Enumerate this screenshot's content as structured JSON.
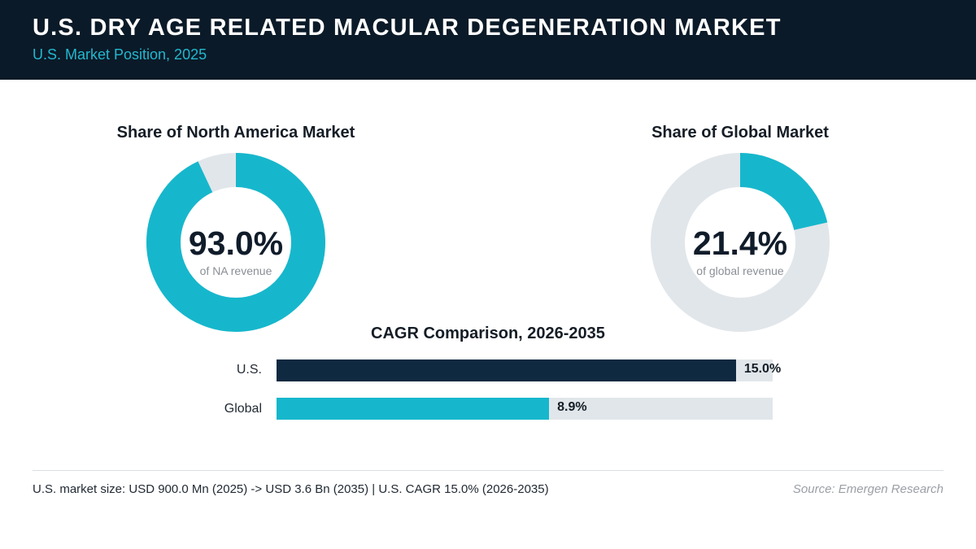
{
  "header": {
    "title": "U.S. DRY AGE RELATED MACULAR DEGENERATION MARKET",
    "subtitle": "U.S. Market Position, 2025"
  },
  "chart_data": [
    {
      "type": "pie",
      "title": "Share of North America Market",
      "center_label": "93.0%",
      "caption": "of NA revenue",
      "categories": [
        "U.S."
      ],
      "values": [
        93.0
      ],
      "colors": [
        "#16b7cc",
        "#e1e6ea"
      ]
    },
    {
      "type": "pie",
      "title": "Share of Global Market",
      "center_label": "21.4%",
      "caption": "of global revenue",
      "categories": [
        "U.S."
      ],
      "values": [
        21.4
      ],
      "colors": [
        "#16b7cc",
        "#e1e6ea"
      ]
    },
    {
      "type": "bar",
      "title": "CAGR Comparison, 2026-2035",
      "orientation": "horizontal",
      "categories": [
        "U.S.",
        "Global"
      ],
      "values": [
        15.0,
        8.9
      ],
      "value_labels": [
        "15.0%",
        "8.9%"
      ],
      "colors": [
        "#0f2940",
        "#16b7cc"
      ],
      "track_color": "#e1e6ea",
      "xlim": [
        0,
        16.2
      ]
    }
  ],
  "footer": {
    "note": "U.S. market size: USD 900.0 Mn (2025) -> USD 3.6 Bn (2035)  |  U.S. CAGR 15.0% (2026-2035)",
    "source": "Source: Emergen Research"
  }
}
